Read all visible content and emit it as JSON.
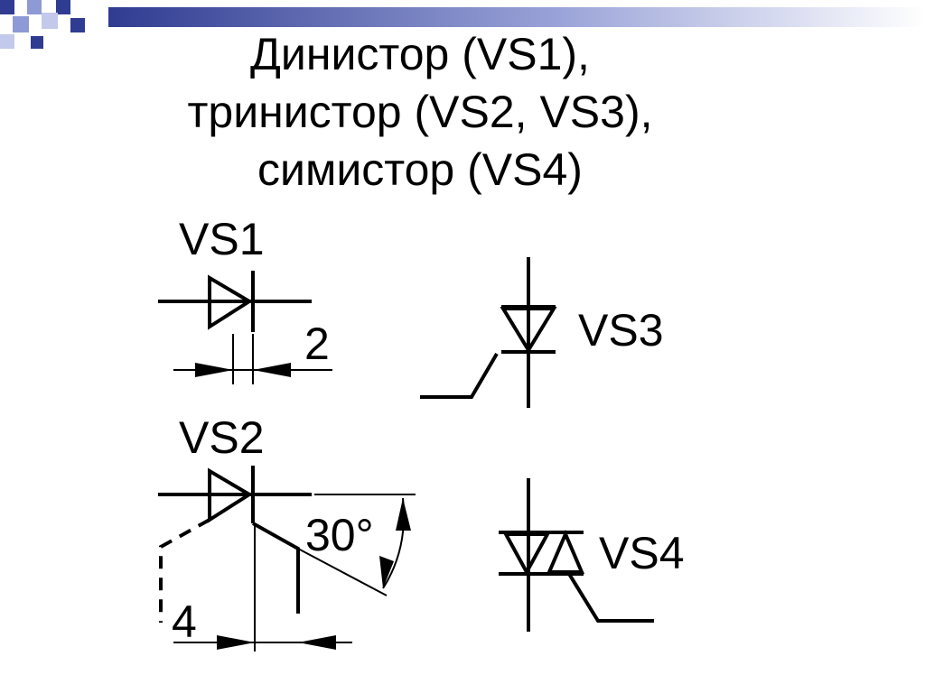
{
  "title": {
    "line1": "Динистор (VS1),",
    "line2": "тринистор (VS2, VS3),",
    "line3": "симистор (VS4)"
  },
  "labels": {
    "vs1": "VS1",
    "vs2": "VS2",
    "vs3": "VS3",
    "vs4": "VS4",
    "dim_vs1": "2",
    "dim_vs2": "4",
    "angle_vs2": "30°"
  },
  "colors": {
    "accent_blue": "#2f3c91",
    "light_blue": "#8d9ad6",
    "ink": "#000000"
  }
}
